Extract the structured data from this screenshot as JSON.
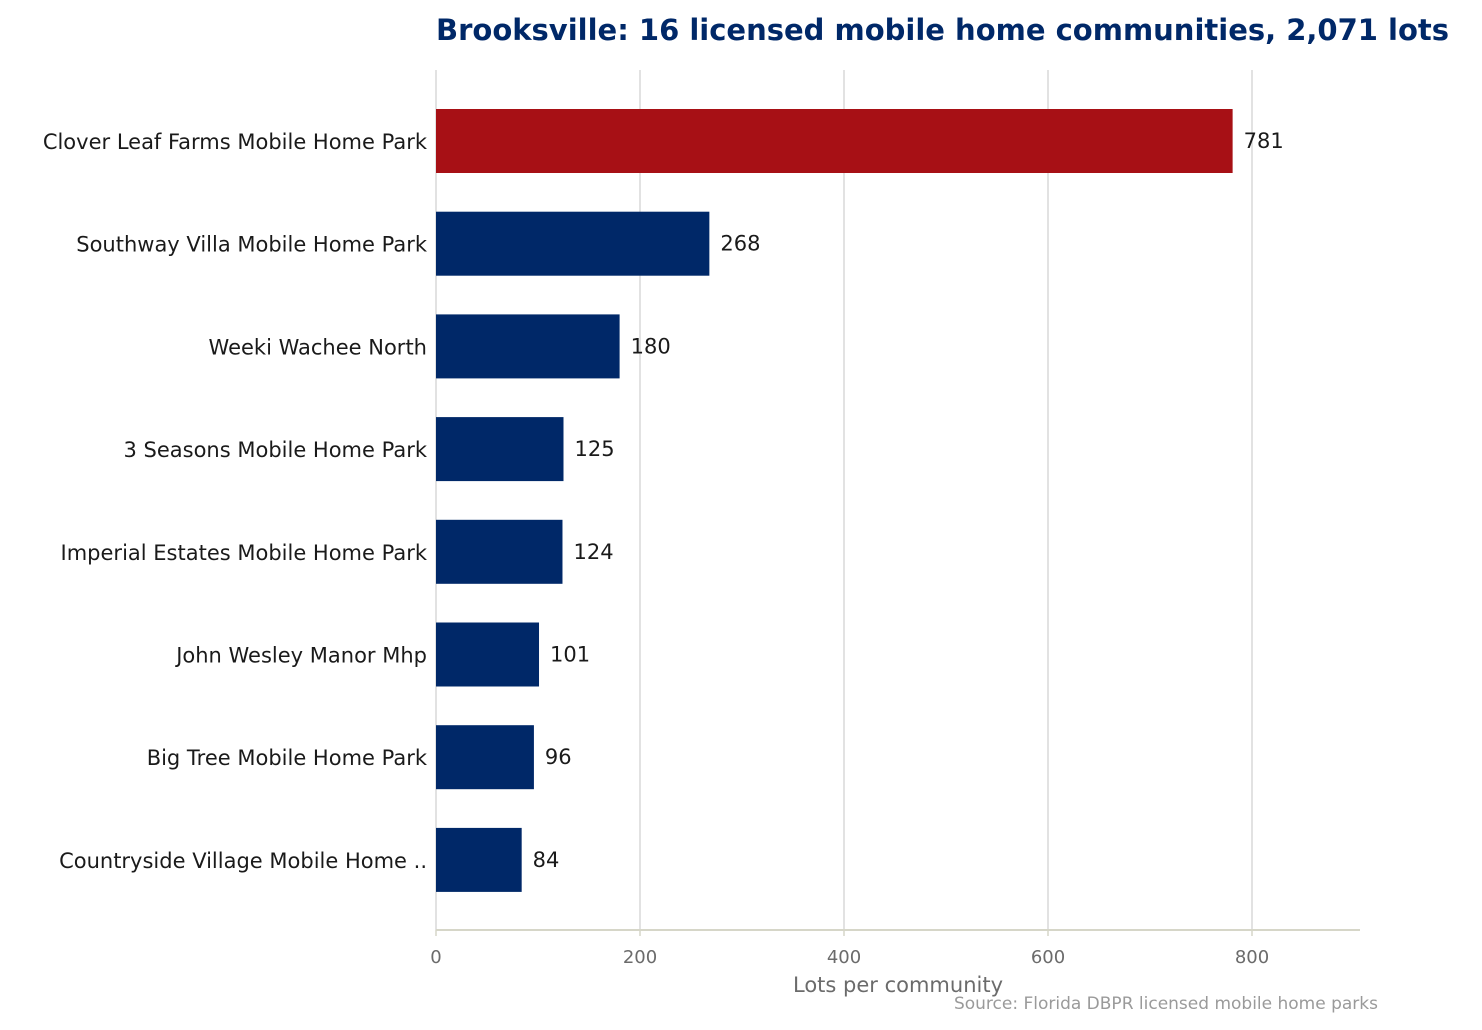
{
  "chart_data": {
    "type": "bar",
    "orientation": "horizontal",
    "title": "Brooksville: 16 licensed mobile home communities, 2,071 lots",
    "xlabel": "Lots per community",
    "ylabel": "",
    "xlim": [
      0,
      905
    ],
    "xticks": [
      0,
      200,
      400,
      600,
      800
    ],
    "grid": true,
    "categories": [
      "Clover Leaf Farms Mobile Home Park",
      "Southway Villa Mobile Home Park",
      "Weeki Wachee North",
      "3 Seasons Mobile Home Park",
      "Imperial Estates Mobile Home Park",
      "John Wesley Manor Mhp",
      "Big Tree Mobile Home Park",
      "Countryside Village Mobile Home .."
    ],
    "values": [
      781,
      268,
      180,
      125,
      124,
      101,
      96,
      84
    ],
    "highlight_index": 0,
    "colors": {
      "highlight": "#A71015",
      "default": "#002868",
      "grid": "#d9d9d9",
      "axis": "#d6d6c8"
    },
    "source": "Source: Florida DBPR licensed mobile home parks"
  }
}
